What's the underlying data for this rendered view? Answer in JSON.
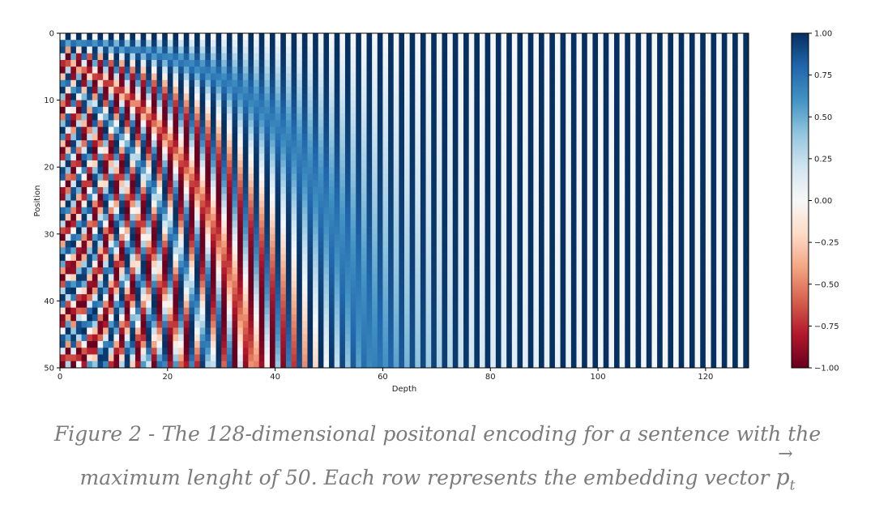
{
  "chart_data": {
    "type": "heatmap",
    "title": "",
    "xlabel": "Depth",
    "ylabel": "Position",
    "rows": 50,
    "cols": 128,
    "x_range": [
      0,
      128
    ],
    "y_range": [
      0,
      50
    ],
    "y_inverted": true,
    "x_ticks": [
      0,
      20,
      40,
      60,
      80,
      100,
      120
    ],
    "y_ticks": [
      0,
      10,
      20,
      30,
      40,
      50
    ],
    "value_formula": "PE(pos, 2i) = sin(pos / 10000^(2i/128)), PE(pos, 2i+1) = cos(pos / 10000^(2i/128))",
    "colormap": "RdBu",
    "colormap_stops": [
      "#67001f",
      "#b2182b",
      "#d6604d",
      "#f4a582",
      "#fddbc7",
      "#f7f7f7",
      "#d1e5f0",
      "#92c5de",
      "#4393c3",
      "#2166ac",
      "#053061"
    ],
    "colorbar": {
      "range": [
        -1.0,
        1.0
      ],
      "ticks": [
        1.0,
        0.75,
        0.5,
        0.25,
        0.0,
        -0.25,
        -0.5,
        -0.75,
        -1.0
      ],
      "tick_labels": [
        "1.00",
        "0.75",
        "0.50",
        "0.25",
        "0.00",
        "−0.25",
        "−0.50",
        "−0.75",
        "−1.00"
      ]
    },
    "grid": false,
    "legend": "colorbar-right"
  },
  "caption": {
    "line1": "Figure 2 - The 128-dimensional positonal encoding for a sentence with the",
    "line2": "maximum lenght of 50. Each row represents the embedding vector",
    "vector_symbol": "p",
    "vector_subscript": "t",
    "vector_arrow": "→"
  }
}
